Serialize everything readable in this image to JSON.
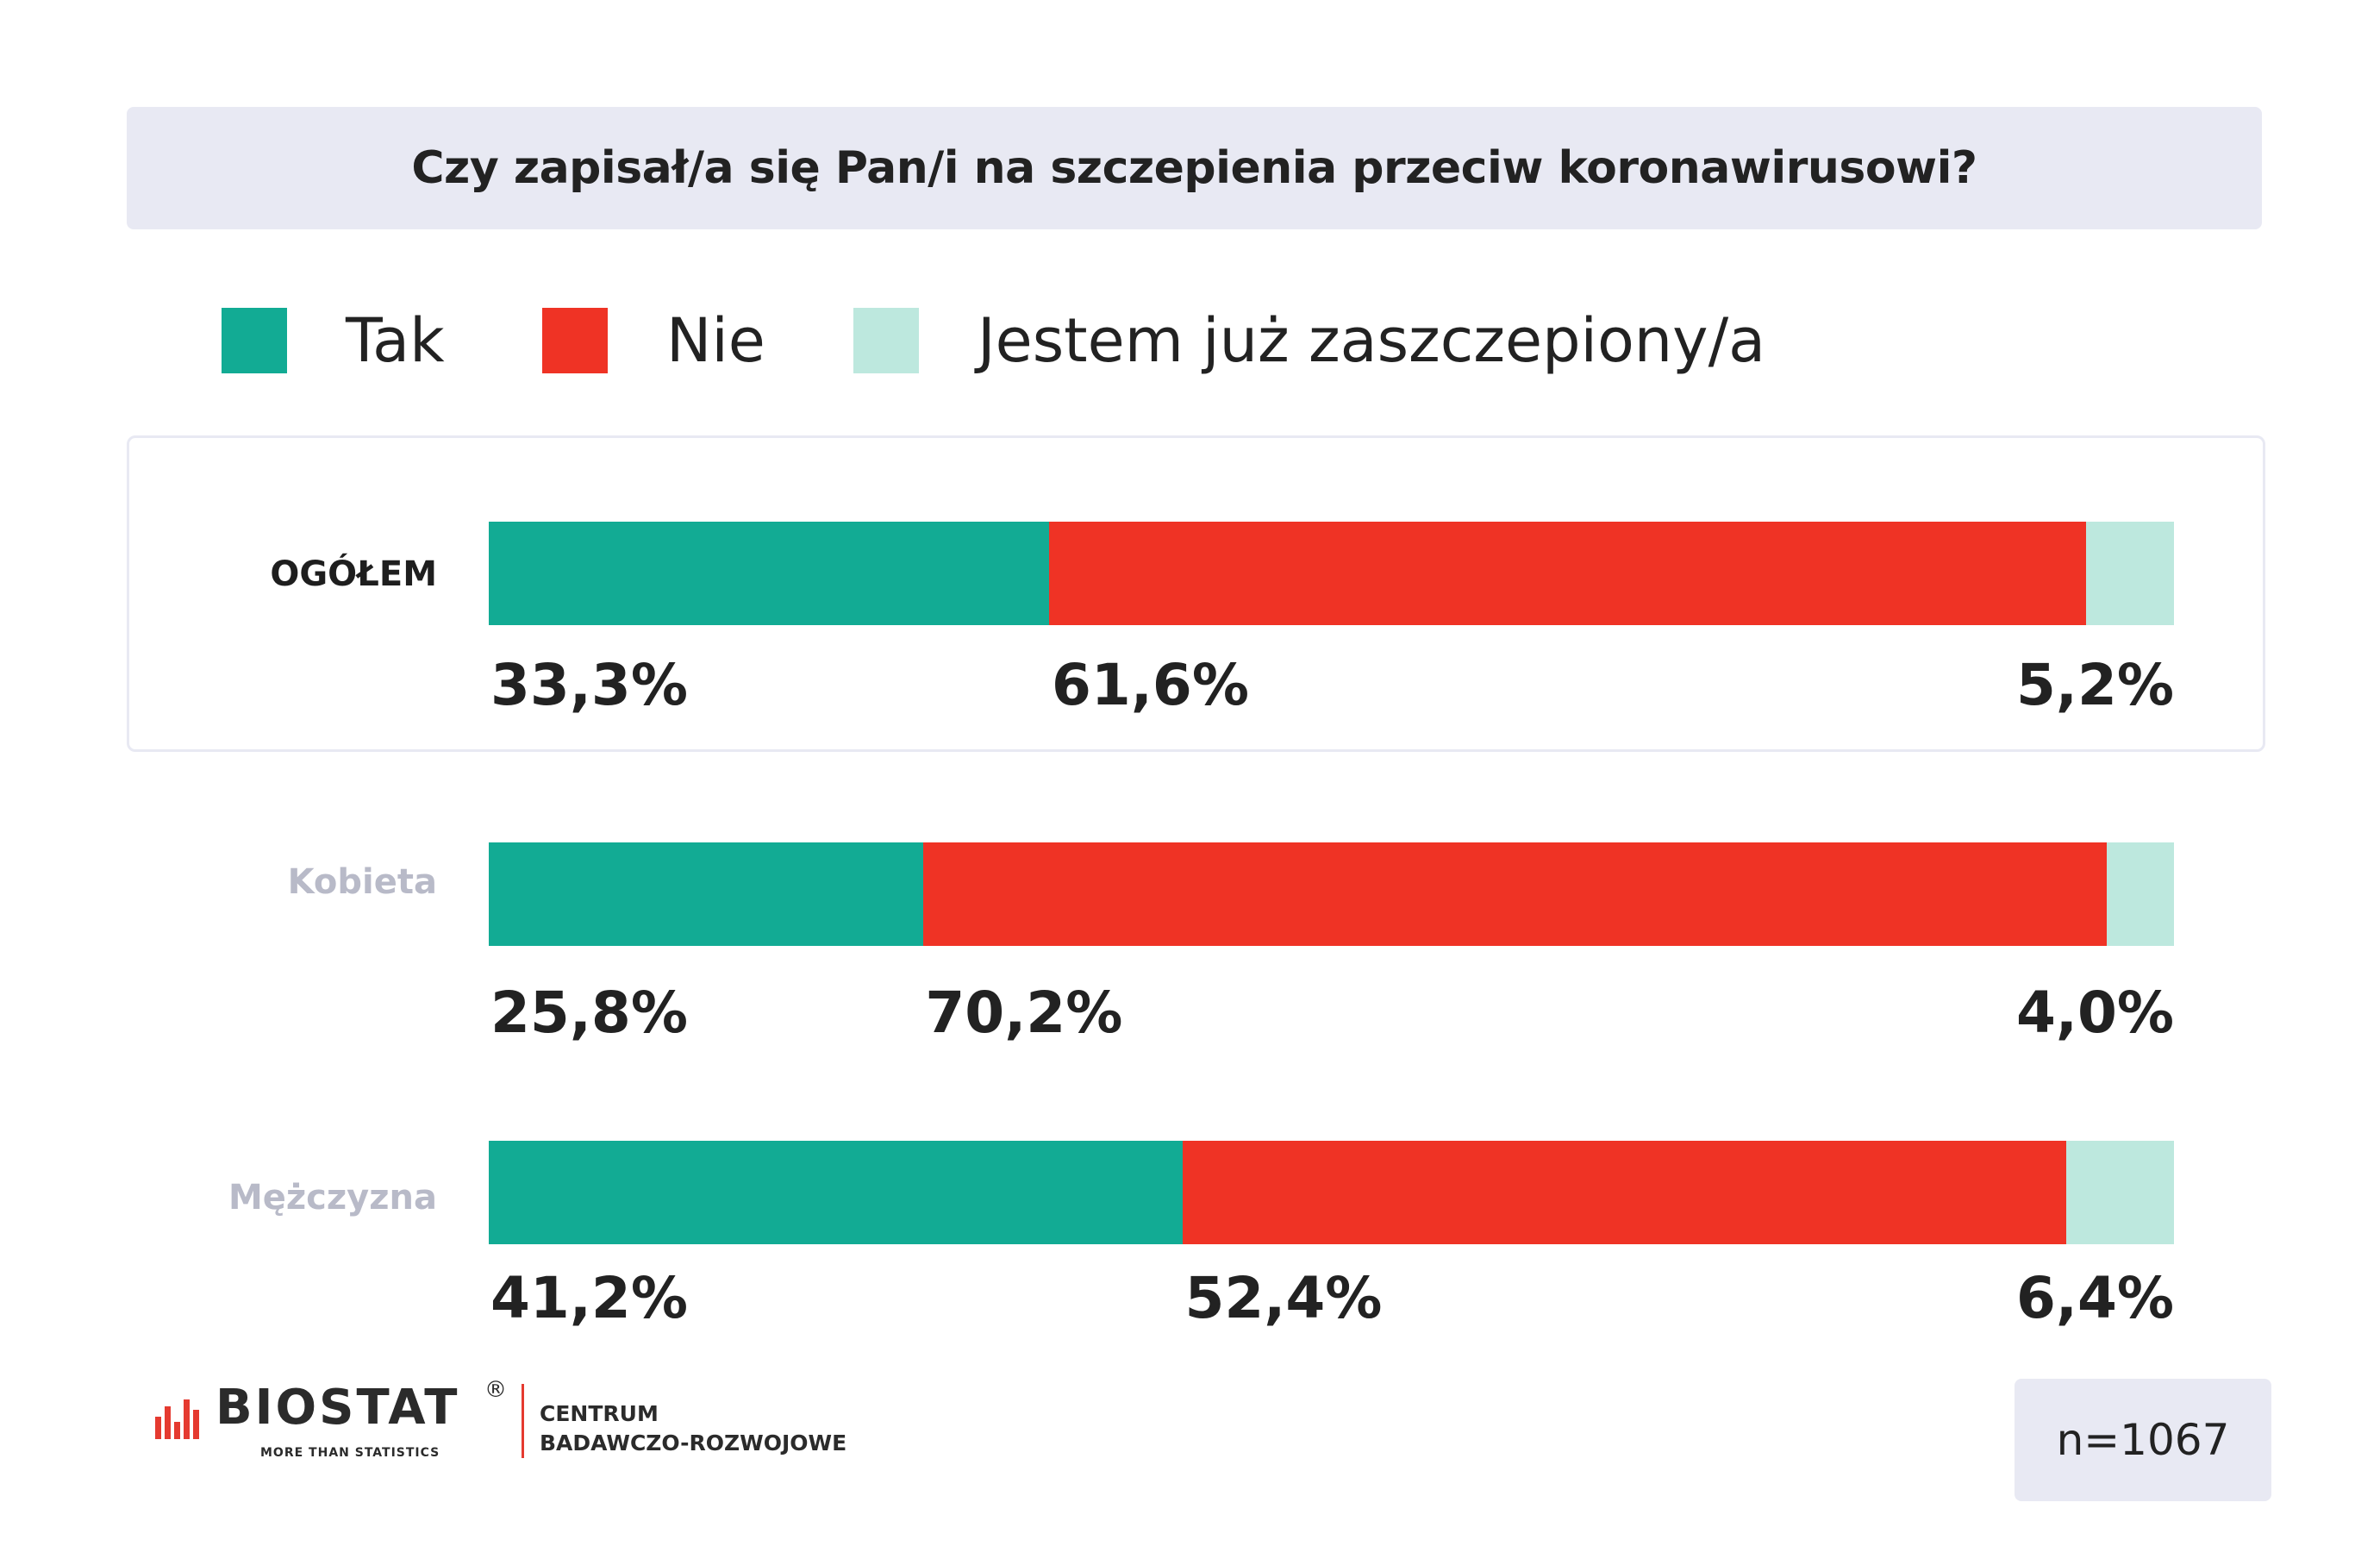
{
  "colors": {
    "tak": "#12ab94",
    "nie": "#ef3325",
    "zaszczepiony": "#bde8de"
  },
  "chart_data": {
    "type": "bar",
    "orientation": "horizontal",
    "stacked": true,
    "title": "Czy zapisał/a się Pan/i na szczepienia przeciw koronawirusowi?",
    "legend_position": "top",
    "categories": [
      "OGÓŁEM",
      "Kobieta",
      "Mężczyzna"
    ],
    "series": [
      {
        "name": "Tak",
        "values": [
          33.3,
          25.8,
          41.2
        ],
        "labels": [
          "33,3%",
          "25,8%",
          "41,2%"
        ]
      },
      {
        "name": "Nie",
        "values": [
          61.6,
          70.2,
          52.4
        ],
        "labels": [
          "61,6%",
          "70,2%",
          "52,4%"
        ]
      },
      {
        "name": "Jestem już zaszczepiony/a",
        "values": [
          5.2,
          4.0,
          6.4
        ],
        "labels": [
          "5,2%",
          "4,0%",
          "6,4%"
        ]
      }
    ],
    "xlim": [
      0,
      100
    ]
  },
  "footer": {
    "logo_name": "BIOSTAT",
    "logo_reg": "®",
    "logo_tagline": "MORE THAN STATISTICS",
    "logo_sub1": "CENTRUM",
    "logo_sub2": "BADAWCZO-ROZWOJOWE",
    "sample": "n=1067"
  }
}
